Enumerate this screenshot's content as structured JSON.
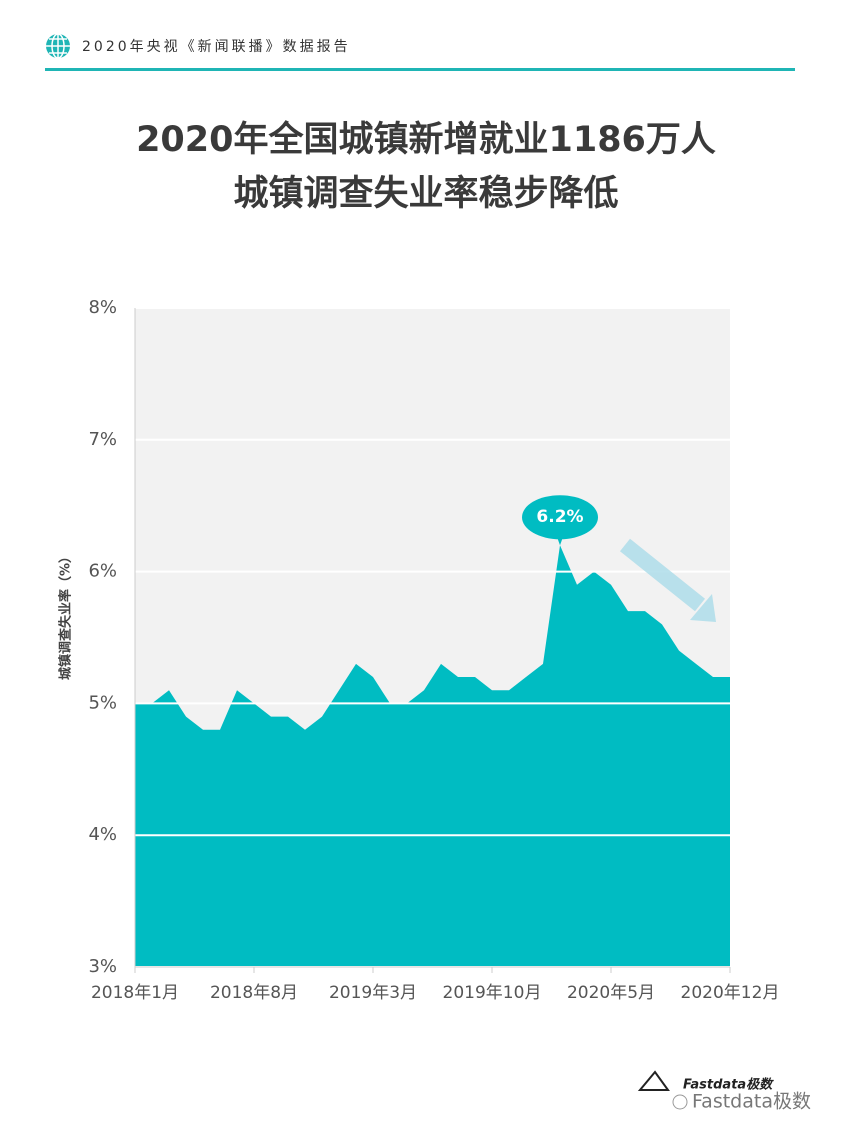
{
  "header": {
    "title": "2020年央视《新闻联播》数据报告"
  },
  "chart_data": {
    "type": "area",
    "title": "2020年全国城镇新增就业1186万人",
    "subtitle": "城镇调查失业率稳步降低",
    "y_label": "城镇调查失业率（%）",
    "categories": [
      "2018年1月",
      null,
      null,
      null,
      null,
      null,
      null,
      "2018年8月",
      null,
      null,
      null,
      null,
      null,
      null,
      "2019年3月",
      null,
      null,
      null,
      null,
      null,
      null,
      "2019年10月",
      null,
      null,
      null,
      null,
      null,
      null,
      "2020年5月",
      null,
      null,
      null,
      null,
      null,
      null,
      "2020年12月"
    ],
    "values": [
      5.0,
      5.0,
      5.1,
      4.9,
      4.8,
      4.8,
      5.1,
      5.0,
      4.9,
      4.9,
      4.8,
      4.9,
      5.1,
      5.3,
      5.2,
      5.0,
      5.0,
      5.1,
      5.3,
      5.2,
      5.2,
      5.1,
      5.1,
      5.2,
      5.3,
      6.2,
      5.9,
      6.0,
      5.9,
      5.7,
      5.7,
      5.6,
      5.4,
      5.3,
      5.2,
      5.2
    ],
    "value_labels": [
      null,
      null,
      null,
      null,
      null,
      null,
      null,
      null,
      null,
      null,
      null,
      null,
      null,
      null,
      null,
      null,
      null,
      null,
      null,
      null,
      null,
      null,
      null,
      null,
      null,
      "6.2%",
      null,
      null,
      null,
      null,
      null,
      null,
      null,
      null,
      null,
      null
    ],
    "color": "#00bcc2",
    "ylim": [
      3,
      8
    ],
    "yticks": [
      {
        "value": 3,
        "label": "3%"
      },
      {
        "value": 4,
        "label": "4%"
      },
      {
        "value": 5,
        "label": "5%"
      },
      {
        "value": 6,
        "label": "6%"
      },
      {
        "value": 7,
        "label": "7%"
      },
      {
        "value": 8,
        "label": "8%"
      }
    ],
    "grid": true
  },
  "footer": {
    "logo_text": "Fastdata极数",
    "watermark": "Fastdata极数"
  }
}
